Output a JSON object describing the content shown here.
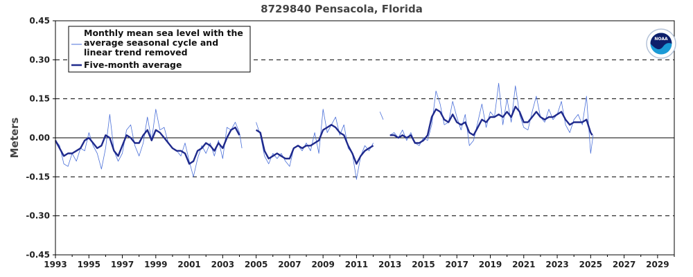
{
  "chart_data": {
    "type": "line",
    "title": "8729840 Pensacola, Florida",
    "xlabel": "",
    "ylabel": "Meters",
    "xlim": [
      1993,
      2030
    ],
    "ylim": [
      -0.45,
      0.45
    ],
    "x_ticks": [
      "1993",
      "1995",
      "1997",
      "1999",
      "2001",
      "2003",
      "2005",
      "2007",
      "2009",
      "2011",
      "2013",
      "2015",
      "2017",
      "2019",
      "2021",
      "2023",
      "2025",
      "2027",
      "2029"
    ],
    "y_ticks": [
      "0.45",
      "0.30",
      "0.15",
      "0.00",
      "-0.15",
      "-0.30",
      "-0.45"
    ],
    "grid": "dashed horizontal lines at ±0.15 and ±0.30; solid line at 0.00",
    "legend_placement": "top-left",
    "logo": "NOAA",
    "series": [
      {
        "name": "Monthly mean sea level with the average seasonal cycle and linear trend removed",
        "color": "#4a6fd8",
        "points": [
          [
            1993.0,
            -0.01
          ],
          [
            1993.25,
            -0.03
          ],
          [
            1993.5,
            -0.1
          ],
          [
            1993.75,
            -0.11
          ],
          [
            1994.0,
            -0.06
          ],
          [
            1994.25,
            -0.09
          ],
          [
            1994.5,
            -0.04
          ],
          [
            1994.75,
            -0.05
          ],
          [
            1995.0,
            0.02
          ],
          [
            1995.25,
            -0.03
          ],
          [
            1995.5,
            -0.06
          ],
          [
            1995.75,
            -0.12
          ],
          [
            1996.0,
            -0.04
          ],
          [
            1996.25,
            0.09
          ],
          [
            1996.5,
            -0.05
          ],
          [
            1996.75,
            -0.09
          ],
          [
            1997.0,
            -0.06
          ],
          [
            1997.25,
            0.03
          ],
          [
            1997.5,
            0.05
          ],
          [
            1997.75,
            -0.03
          ],
          [
            1998.0,
            -0.07
          ],
          [
            1998.25,
            -0.02
          ],
          [
            1998.5,
            0.08
          ],
          [
            1998.75,
            -0.01
          ],
          [
            1999.0,
            0.11
          ],
          [
            1999.25,
            0.03
          ],
          [
            1999.5,
            0.04
          ],
          [
            1999.75,
            -0.02
          ],
          [
            2000.0,
            -0.04
          ],
          [
            2000.25,
            -0.05
          ],
          [
            2000.5,
            -0.07
          ],
          [
            2000.75,
            -0.02
          ],
          [
            2001.0,
            -0.09
          ],
          [
            2001.25,
            -0.15
          ],
          [
            2001.5,
            -0.08
          ],
          [
            2001.75,
            -0.03
          ],
          [
            2002.0,
            -0.06
          ],
          [
            2002.25,
            -0.02
          ],
          [
            2002.5,
            -0.07
          ],
          [
            2002.75,
            -0.01
          ],
          [
            2003.0,
            -0.08
          ],
          [
            2003.25,
            0.04
          ],
          [
            2003.5,
            0.03
          ],
          [
            2003.75,
            0.06
          ],
          [
            2004.0,
            0.02
          ],
          [
            2004.15,
            -0.04
          ],
          [
            2005.0,
            0.06
          ],
          [
            2005.25,
            0.01
          ],
          [
            2005.5,
            -0.07
          ],
          [
            2005.75,
            -0.1
          ],
          [
            2006.0,
            -0.06
          ],
          [
            2006.25,
            -0.08
          ],
          [
            2006.5,
            -0.06
          ],
          [
            2006.75,
            -0.09
          ],
          [
            2007.0,
            -0.11
          ],
          [
            2007.25,
            -0.04
          ],
          [
            2007.5,
            -0.03
          ],
          [
            2007.75,
            -0.05
          ],
          [
            2008.0,
            -0.02
          ],
          [
            2008.25,
            -0.05
          ],
          [
            2008.5,
            0.02
          ],
          [
            2008.75,
            -0.06
          ],
          [
            2009.0,
            0.11
          ],
          [
            2009.25,
            0.02
          ],
          [
            2009.5,
            0.05
          ],
          [
            2009.75,
            0.08
          ],
          [
            2010.0,
            0.01
          ],
          [
            2010.25,
            0.05
          ],
          [
            2010.5,
            -0.04
          ],
          [
            2010.75,
            -0.06
          ],
          [
            2011.0,
            -0.16
          ],
          [
            2011.25,
            -0.07
          ],
          [
            2011.5,
            -0.03
          ],
          [
            2011.75,
            -0.05
          ],
          [
            2012.0,
            -0.02
          ],
          [
            2012.4,
            0.1
          ],
          [
            2012.6,
            0.07
          ],
          [
            2013.0,
            0.01
          ],
          [
            2013.25,
            0.02
          ],
          [
            2013.5,
            0.0
          ],
          [
            2013.75,
            0.03
          ],
          [
            2014.0,
            -0.01
          ],
          [
            2014.25,
            0.02
          ],
          [
            2014.5,
            -0.02
          ],
          [
            2014.75,
            -0.03
          ],
          [
            2015.0,
            0.0
          ],
          [
            2015.25,
            -0.01
          ],
          [
            2015.5,
            0.05
          ],
          [
            2015.75,
            0.18
          ],
          [
            2016.0,
            0.13
          ],
          [
            2016.25,
            0.05
          ],
          [
            2016.5,
            0.06
          ],
          [
            2016.75,
            0.14
          ],
          [
            2017.0,
            0.08
          ],
          [
            2017.25,
            0.03
          ],
          [
            2017.5,
            0.09
          ],
          [
            2017.75,
            -0.03
          ],
          [
            2018.0,
            -0.01
          ],
          [
            2018.25,
            0.06
          ],
          [
            2018.5,
            0.13
          ],
          [
            2018.75,
            0.04
          ],
          [
            2019.0,
            0.1
          ],
          [
            2019.25,
            0.08
          ],
          [
            2019.5,
            0.21
          ],
          [
            2019.75,
            0.05
          ],
          [
            2020.0,
            0.15
          ],
          [
            2020.25,
            0.06
          ],
          [
            2020.5,
            0.2
          ],
          [
            2020.75,
            0.09
          ],
          [
            2021.0,
            0.04
          ],
          [
            2021.25,
            0.03
          ],
          [
            2021.5,
            0.1
          ],
          [
            2021.75,
            0.16
          ],
          [
            2022.0,
            0.08
          ],
          [
            2022.25,
            0.06
          ],
          [
            2022.5,
            0.11
          ],
          [
            2022.75,
            0.07
          ],
          [
            2023.0,
            0.09
          ],
          [
            2023.25,
            0.14
          ],
          [
            2023.5,
            0.05
          ],
          [
            2023.75,
            0.02
          ],
          [
            2024.0,
            0.07
          ],
          [
            2024.25,
            0.09
          ],
          [
            2024.5,
            0.05
          ],
          [
            2024.75,
            0.16
          ],
          [
            2025.0,
            -0.06
          ],
          [
            2025.15,
            0.01
          ]
        ]
      },
      {
        "name": "Five-month average",
        "color": "#1f2a8c",
        "points": [
          [
            1993.0,
            -0.01
          ],
          [
            1993.25,
            -0.04
          ],
          [
            1993.5,
            -0.07
          ],
          [
            1993.75,
            -0.06
          ],
          [
            1994.0,
            -0.06
          ],
          [
            1994.25,
            -0.05
          ],
          [
            1994.5,
            -0.04
          ],
          [
            1994.75,
            -0.01
          ],
          [
            1995.0,
            0.0
          ],
          [
            1995.25,
            -0.02
          ],
          [
            1995.5,
            -0.04
          ],
          [
            1995.75,
            -0.03
          ],
          [
            1996.0,
            0.01
          ],
          [
            1996.25,
            0.0
          ],
          [
            1996.5,
            -0.05
          ],
          [
            1996.75,
            -0.07
          ],
          [
            1997.0,
            -0.03
          ],
          [
            1997.25,
            0.01
          ],
          [
            1997.5,
            0.0
          ],
          [
            1997.75,
            -0.02
          ],
          [
            1998.0,
            -0.02
          ],
          [
            1998.25,
            0.01
          ],
          [
            1998.5,
            0.03
          ],
          [
            1998.75,
            -0.01
          ],
          [
            1999.0,
            0.03
          ],
          [
            1999.25,
            0.02
          ],
          [
            1999.5,
            0.0
          ],
          [
            1999.75,
            -0.02
          ],
          [
            2000.0,
            -0.04
          ],
          [
            2000.25,
            -0.05
          ],
          [
            2000.5,
            -0.05
          ],
          [
            2000.75,
            -0.06
          ],
          [
            2001.0,
            -0.1
          ],
          [
            2001.25,
            -0.09
          ],
          [
            2001.5,
            -0.05
          ],
          [
            2001.75,
            -0.04
          ],
          [
            2002.0,
            -0.02
          ],
          [
            2002.25,
            -0.03
          ],
          [
            2002.5,
            -0.05
          ],
          [
            2002.75,
            -0.02
          ],
          [
            2003.0,
            -0.04
          ],
          [
            2003.25,
            0.0
          ],
          [
            2003.5,
            0.03
          ],
          [
            2003.75,
            0.04
          ],
          [
            2004.0,
            0.01
          ],
          [
            2005.0,
            0.03
          ],
          [
            2005.25,
            0.02
          ],
          [
            2005.5,
            -0.05
          ],
          [
            2005.75,
            -0.08
          ],
          [
            2006.0,
            -0.07
          ],
          [
            2006.25,
            -0.06
          ],
          [
            2006.5,
            -0.07
          ],
          [
            2006.75,
            -0.08
          ],
          [
            2007.0,
            -0.08
          ],
          [
            2007.25,
            -0.04
          ],
          [
            2007.5,
            -0.03
          ],
          [
            2007.75,
            -0.04
          ],
          [
            2008.0,
            -0.03
          ],
          [
            2008.25,
            -0.03
          ],
          [
            2008.5,
            -0.02
          ],
          [
            2008.75,
            -0.01
          ],
          [
            2009.0,
            0.03
          ],
          [
            2009.25,
            0.04
          ],
          [
            2009.5,
            0.05
          ],
          [
            2009.75,
            0.04
          ],
          [
            2010.0,
            0.02
          ],
          [
            2010.25,
            0.01
          ],
          [
            2010.5,
            -0.03
          ],
          [
            2010.75,
            -0.06
          ],
          [
            2011.0,
            -0.1
          ],
          [
            2011.25,
            -0.07
          ],
          [
            2011.5,
            -0.05
          ],
          [
            2011.75,
            -0.04
          ],
          [
            2012.0,
            -0.03
          ],
          [
            2013.0,
            0.01
          ],
          [
            2013.25,
            0.01
          ],
          [
            2013.5,
            0.0
          ],
          [
            2013.75,
            0.01
          ],
          [
            2014.0,
            0.0
          ],
          [
            2014.25,
            0.01
          ],
          [
            2014.5,
            -0.02
          ],
          [
            2014.75,
            -0.02
          ],
          [
            2015.0,
            -0.01
          ],
          [
            2015.25,
            0.01
          ],
          [
            2015.5,
            0.08
          ],
          [
            2015.75,
            0.11
          ],
          [
            2016.0,
            0.1
          ],
          [
            2016.25,
            0.07
          ],
          [
            2016.5,
            0.06
          ],
          [
            2016.75,
            0.09
          ],
          [
            2017.0,
            0.06
          ],
          [
            2017.25,
            0.05
          ],
          [
            2017.5,
            0.06
          ],
          [
            2017.75,
            0.02
          ],
          [
            2018.0,
            0.01
          ],
          [
            2018.25,
            0.04
          ],
          [
            2018.5,
            0.07
          ],
          [
            2018.75,
            0.06
          ],
          [
            2019.0,
            0.08
          ],
          [
            2019.25,
            0.08
          ],
          [
            2019.5,
            0.09
          ],
          [
            2019.75,
            0.08
          ],
          [
            2020.0,
            0.1
          ],
          [
            2020.25,
            0.08
          ],
          [
            2020.5,
            0.12
          ],
          [
            2020.75,
            0.1
          ],
          [
            2021.0,
            0.06
          ],
          [
            2021.25,
            0.06
          ],
          [
            2021.5,
            0.08
          ],
          [
            2021.75,
            0.1
          ],
          [
            2022.0,
            0.08
          ],
          [
            2022.25,
            0.07
          ],
          [
            2022.5,
            0.08
          ],
          [
            2022.75,
            0.08
          ],
          [
            2023.0,
            0.09
          ],
          [
            2023.25,
            0.1
          ],
          [
            2023.5,
            0.07
          ],
          [
            2023.75,
            0.05
          ],
          [
            2024.0,
            0.06
          ],
          [
            2024.25,
            0.06
          ],
          [
            2024.5,
            0.06
          ],
          [
            2024.75,
            0.07
          ],
          [
            2025.0,
            0.02
          ],
          [
            2025.1,
            0.01
          ]
        ]
      }
    ]
  }
}
